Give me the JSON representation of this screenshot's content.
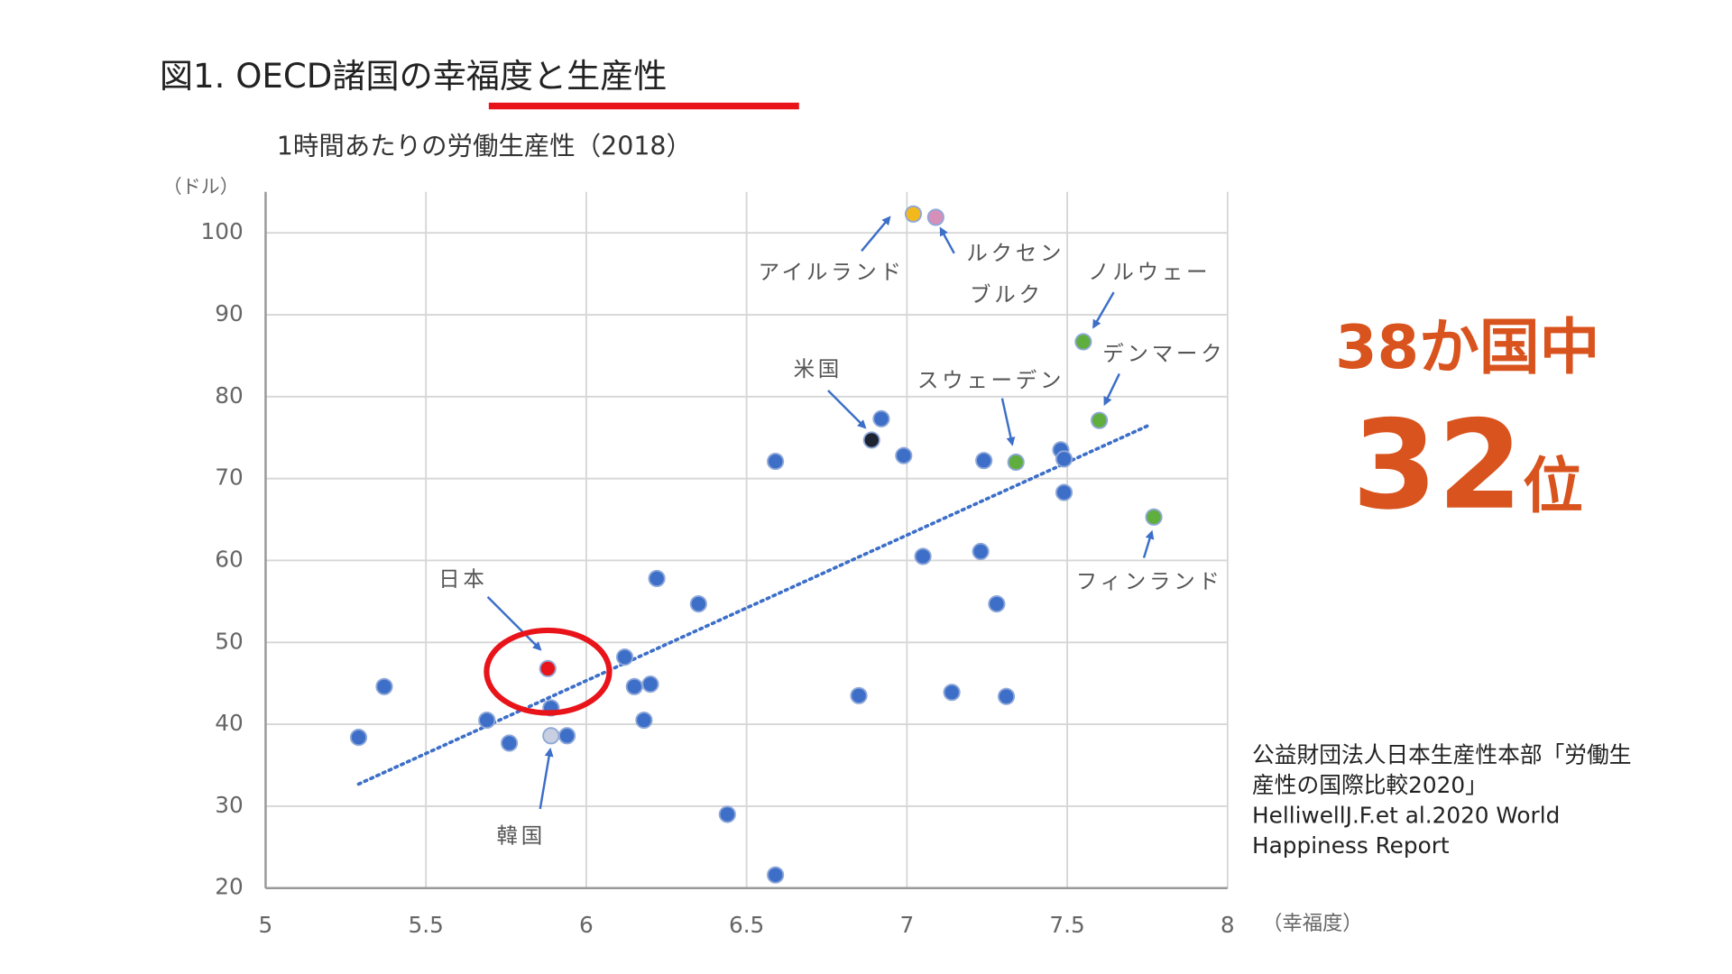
{
  "chart_data": {
    "type": "scatter",
    "title": "図1. OECD諸国の幸福度と生産性",
    "subtitle": "1時間あたりの労働生産性（2018）",
    "y_label": "（ドル）",
    "x_label": "（幸福度）",
    "xlim": [
      5,
      8
    ],
    "xticks": [
      5,
      5.5,
      6,
      6.5,
      7,
      7.5,
      8
    ],
    "ylim": [
      20,
      105
    ],
    "yticks": [
      20,
      30,
      40,
      50,
      60,
      70,
      80,
      90,
      100
    ],
    "grid": true,
    "x": [
      5.29,
      5.37,
      5.69,
      5.76,
      5.88,
      5.89,
      5.89,
      5.94,
      6.12,
      6.15,
      6.2,
      6.18,
      6.22,
      6.35,
      6.44,
      6.59,
      6.59,
      6.85,
      6.89,
      6.92,
      6.99,
      7.02,
      7.09,
      7.05,
      7.14,
      7.23,
      7.24,
      7.28,
      7.31,
      7.34,
      7.48,
      7.49,
      7.49,
      7.55,
      7.6,
      7.77
    ],
    "values": [
      38.4,
      44.6,
      40.5,
      37.7,
      46.8,
      42.0,
      38.6,
      38.6,
      48.2,
      44.6,
      44.9,
      40.5,
      57.8,
      54.7,
      29.0,
      72.1,
      21.6,
      43.5,
      74.7,
      77.3,
      72.8,
      102.3,
      101.9,
      60.5,
      43.9,
      61.1,
      72.2,
      54.7,
      43.4,
      72.0,
      73.5,
      72.4,
      68.3,
      86.7,
      77.1,
      65.3
    ],
    "colors": [
      "#3d6fc8",
      "#3d6fc8",
      "#3d6fc8",
      "#3d6fc8",
      "#e8141a",
      "#3d6fc8",
      "#c7cfe0",
      "#3d6fc8",
      "#3d6fc8",
      "#3d6fc8",
      "#3d6fc8",
      "#3d6fc8",
      "#3d6fc8",
      "#3d6fc8",
      "#3d6fc8",
      "#3d6fc8",
      "#3d6fc8",
      "#3d6fc8",
      "#1d2330",
      "#3d6fc8",
      "#3d6fc8",
      "#f2b81c",
      "#d68fb9",
      "#3d6fc8",
      "#3d6fc8",
      "#3d6fc8",
      "#3d6fc8",
      "#3d6fc8",
      "#3d6fc8",
      "#5fae3e",
      "#3d6fc8",
      "#3d6fc8",
      "#3d6fc8",
      "#5fae3e",
      "#5fae3e",
      "#5fae3e"
    ],
    "trendline": {
      "x": [
        5.29,
        7.76
      ],
      "y": [
        32.7,
        76.6
      ],
      "color": "#3d6fc8"
    },
    "annotations": [
      "アイルランド",
      "ルクセン",
      "ブルク",
      "ノルウェー",
      "デンマーク",
      "米国",
      "スウェーデン",
      "フィンランド",
      "日本",
      "韓国"
    ]
  },
  "callout": {
    "line1": "38か国中",
    "rank": "32",
    "suffix": "位"
  },
  "source": [
    "公益財団法人日本生産性本部「労働生",
    "産性の国際比較2020」",
    "HelliwellJ.F.et al.2020 World",
    "Happiness Report"
  ]
}
